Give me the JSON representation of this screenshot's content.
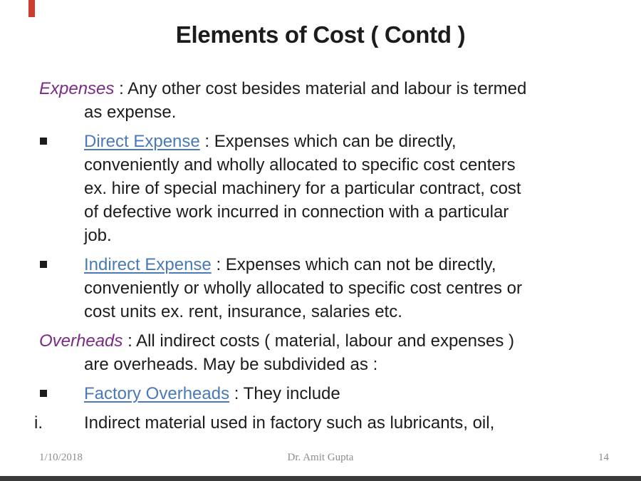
{
  "slide": {
    "title": "Elements of Cost ( Contd )",
    "colors": {
      "text": "#1c1c1c",
      "accent_purple": "#7b2b87",
      "link_blue": "#4a7ab5",
      "footer_gray": "#8c8c8c",
      "top_marker_red": "#cb3d2e",
      "bottom_bar": "#3a3a3a"
    },
    "footer": {
      "date": "1/10/2018",
      "author": "Dr. Amit Gupta",
      "page_number": "14"
    }
  },
  "content": {
    "paragraphs": [
      {
        "marker": "none",
        "runs": [
          {
            "t": "Expenses",
            "s": "em"
          },
          {
            "t": " : Any other cost besides material and labour is termed\nas expense.",
            "s": ""
          }
        ]
      },
      {
        "marker": "square",
        "runs": [
          {
            "t": "Direct Expense",
            "s": "link"
          },
          {
            "t": " : Expenses which can be directly,\nconveniently and wholly allocated to specific cost centers\nex. hire of special machinery for a particular contract, cost\nof defective work incurred in connection with a particular\njob.",
            "s": ""
          }
        ]
      },
      {
        "marker": "square",
        "runs": [
          {
            "t": "Indirect Expense",
            "s": "link"
          },
          {
            "t": " : Expenses which can not be directly,\nconveniently or wholly allocated to specific cost centres or\ncost units ex. rent, insurance, salaries etc.",
            "s": ""
          }
        ]
      },
      {
        "marker": "none",
        "runs": [
          {
            "t": "Overheads",
            "s": "em"
          },
          {
            "t": " : All indirect costs ( material, labour and expenses )\nare overheads. May be subdivided as :",
            "s": ""
          }
        ]
      },
      {
        "marker": "square",
        "runs": [
          {
            "t": "Factory Overheads",
            "s": "link"
          },
          {
            "t": " : They include",
            "s": ""
          }
        ]
      },
      {
        "marker": "i.",
        "runs": [
          {
            "t": "Indirect material used in factory such as lubricants, oil,",
            "s": ""
          }
        ]
      }
    ]
  }
}
